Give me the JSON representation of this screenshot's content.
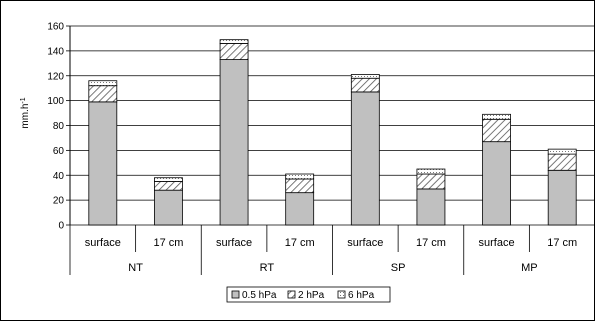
{
  "chart_data": {
    "type": "bar",
    "stacked": true,
    "groups": [
      "NT",
      "RT",
      "SP",
      "MP"
    ],
    "categories": [
      "surface",
      "17 cm",
      "surface",
      "17 cm",
      "surface",
      "17 cm",
      "surface",
      "17 cm"
    ],
    "series": [
      {
        "name": "0.5 hPa",
        "values": [
          99,
          28,
          133,
          26,
          107,
          29,
          67,
          44
        ],
        "color": "#c0c0c0",
        "pattern": "solid"
      },
      {
        "name": "2 hPa",
        "values": [
          13,
          7,
          13,
          11,
          11,
          12,
          18,
          13
        ],
        "color": "#ffffff",
        "pattern": "diagonal-hatch"
      },
      {
        "name": "6 hPa",
        "values": [
          4,
          3,
          3,
          4,
          3,
          4,
          4,
          4
        ],
        "color": "#ffffff",
        "pattern": "dotted"
      }
    ],
    "ylabel": "mm.h",
    "ylabel_superscript": "-1",
    "ylim": [
      0,
      160
    ],
    "yticks": [
      0,
      20,
      40,
      60,
      80,
      100,
      120,
      140,
      160
    ],
    "grid": true,
    "legend_position": "bottom"
  }
}
